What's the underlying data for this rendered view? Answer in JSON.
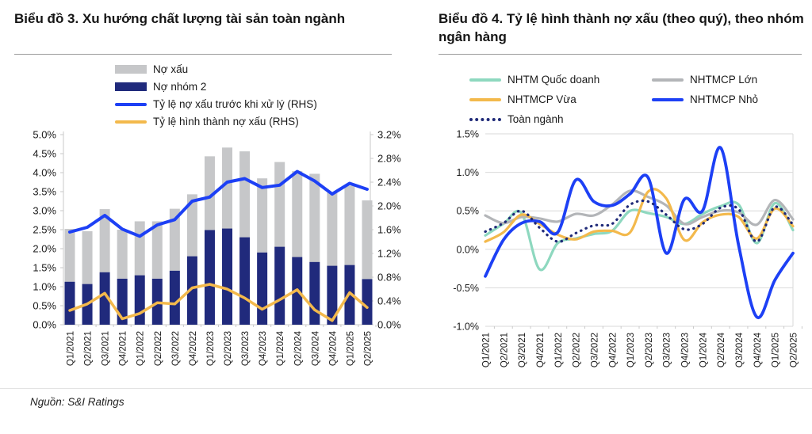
{
  "page": {
    "source_note": "Nguồn: S&I Ratings"
  },
  "chart_data": [
    {
      "type": "bar",
      "subtype": "stacked-bar-with-lines",
      "title": "Biểu đồ 3. Xu hướng chất lượng tài sản toàn ngành",
      "categories": [
        "Q1/2021",
        "Q2/2021",
        "Q3/2021",
        "Q4/2021",
        "Q1/2022",
        "Q2/2022",
        "Q3/2022",
        "Q4/2022",
        "Q1/2023",
        "Q2/2023",
        "Q3/2023",
        "Q4/2023",
        "Q1/2024",
        "Q2/2024",
        "Q3/2024",
        "Q4/2024",
        "Q1/2025",
        "Q2/2025"
      ],
      "left_axis": {
        "min": 0,
        "max": 5,
        "ticks": [
          "5.0%",
          "4.5%",
          "4.0%",
          "3.5%",
          "3.0%",
          "2.5%",
          "2.0%",
          "1.5%",
          "1.0%",
          "0.5%",
          "0.0%"
        ]
      },
      "right_axis": {
        "min": 0,
        "max": 3.2,
        "ticks": [
          "3.2%",
          "2.8%",
          "2.4%",
          "2.0%",
          "1.6%",
          "1.2%",
          "0.8%",
          "0.4%",
          "0.0%"
        ]
      },
      "grid": false,
      "legend_position": "top",
      "series": [
        {
          "name": "Nợ xấu",
          "kind": "bar",
          "stack_segment": "top",
          "axis": "left",
          "color": "#c6c7c9",
          "values": [
            1.39,
            1.39,
            1.66,
            1.29,
            1.42,
            1.51,
            1.63,
            1.63,
            1.94,
            2.13,
            2.26,
            1.95,
            2.23,
            2.26,
            2.32,
            1.93,
            2.09,
            2.07
          ]
        },
        {
          "name": "Nợ nhóm 2",
          "kind": "bar",
          "stack_segment": "bottom",
          "axis": "left",
          "color": "#202a7c",
          "values": [
            1.13,
            1.07,
            1.38,
            1.21,
            1.3,
            1.21,
            1.42,
            1.8,
            2.49,
            2.53,
            2.3,
            1.9,
            2.05,
            1.78,
            1.65,
            1.55,
            1.57,
            1.2
          ]
        },
        {
          "name": "Tỷ lệ nợ xấu trước khi xử lý (RHS)",
          "kind": "line",
          "axis": "right",
          "color": "#1d40f5",
          "values": [
            1.56,
            1.64,
            1.84,
            1.61,
            1.49,
            1.68,
            1.77,
            2.08,
            2.15,
            2.4,
            2.46,
            2.31,
            2.35,
            2.58,
            2.42,
            2.2,
            2.38,
            2.28
          ]
        },
        {
          "name": "Tỷ lệ hình thành nợ xấu (RHS)",
          "kind": "line",
          "axis": "right",
          "color": "#f3b94c",
          "values": [
            0.24,
            0.35,
            0.53,
            0.1,
            0.19,
            0.37,
            0.35,
            0.62,
            0.68,
            0.6,
            0.45,
            0.26,
            0.42,
            0.59,
            0.25,
            0.07,
            0.54,
            0.29
          ]
        }
      ],
      "units": "%"
    },
    {
      "type": "line",
      "title": "Biểu đồ 4. Tỷ lệ hình thành nợ xấu (theo quý), theo nhóm ngân hàng",
      "categories": [
        "Q1/2021",
        "Q2/2021",
        "Q3/2021",
        "Q4/2021",
        "Q1/2022",
        "Q2/2022",
        "Q3/2022",
        "Q4/2022",
        "Q1/2023",
        "Q2/2023",
        "Q3/2023",
        "Q4/2023",
        "Q1/2024",
        "Q2/2024",
        "Q3/2024",
        "Q4/2024",
        "Q1/2025",
        "Q2/2025"
      ],
      "y_axis": {
        "min": -1.0,
        "max": 1.5,
        "ticks": [
          "1.5%",
          "1.0%",
          "0.5%",
          "0.0%",
          "-0.5%",
          "-1.0%"
        ]
      },
      "grid": true,
      "legend_position": "top",
      "smooth": true,
      "series": [
        {
          "name": "NHTM Quốc doanh",
          "color": "#8ed8bf",
          "dashed": false,
          "values": [
            0.18,
            0.33,
            0.47,
            -0.26,
            0.08,
            0.14,
            0.2,
            0.24,
            0.5,
            0.47,
            0.42,
            0.33,
            0.46,
            0.56,
            0.58,
            0.08,
            0.6,
            0.25
          ]
        },
        {
          "name": "NHTMCP Lớn",
          "color": "#b3b5b8",
          "dashed": false,
          "values": [
            0.44,
            0.34,
            0.42,
            0.4,
            0.36,
            0.46,
            0.44,
            0.58,
            0.76,
            0.68,
            0.57,
            0.33,
            0.42,
            0.5,
            0.48,
            0.32,
            0.64,
            0.39
          ]
        },
        {
          "name": "NHTMCP Vừa",
          "color": "#f3b94c",
          "dashed": false,
          "values": [
            0.1,
            0.22,
            0.45,
            0.33,
            0.19,
            0.13,
            0.23,
            0.24,
            0.22,
            0.75,
            0.66,
            0.12,
            0.35,
            0.45,
            0.42,
            0.14,
            0.53,
            0.3
          ]
        },
        {
          "name": "NHTMCP Nhỏ",
          "color": "#1d40f5",
          "dashed": false,
          "values": [
            -0.35,
            0.12,
            0.34,
            0.36,
            0.22,
            0.9,
            0.62,
            0.57,
            0.72,
            0.93,
            -0.05,
            0.65,
            0.5,
            1.32,
            0.05,
            -0.88,
            -0.4,
            -0.05
          ]
        },
        {
          "name": "Toàn ngành",
          "color": "#1f2a78",
          "dashed": true,
          "values": [
            0.23,
            0.34,
            0.5,
            0.28,
            0.1,
            0.21,
            0.31,
            0.33,
            0.58,
            0.62,
            0.45,
            0.26,
            0.33,
            0.54,
            0.52,
            0.1,
            0.55,
            0.32
          ]
        }
      ],
      "units": "%"
    }
  ]
}
